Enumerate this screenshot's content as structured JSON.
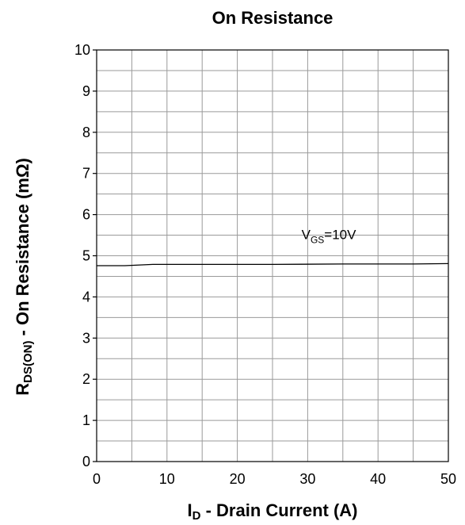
{
  "chart_data": {
    "type": "line",
    "title": "On Resistance",
    "xlabel": {
      "main": "I",
      "sub": "D",
      "rest": " - Drain Current (A)"
    },
    "ylabel": {
      "main": "R",
      "sub": "DS(ON)",
      "rest": " - On Resistance (mΩ)"
    },
    "xlim": [
      0,
      50
    ],
    "ylim": [
      0,
      10
    ],
    "x_major_ticks": [
      0,
      10,
      20,
      30,
      40,
      50
    ],
    "y_major_ticks": [
      0,
      1,
      2,
      3,
      4,
      5,
      6,
      7,
      8,
      9,
      10
    ],
    "x_grid_step": 5,
    "y_grid_step": 0.5,
    "grid": true,
    "series": [
      {
        "x": [
          0,
          4,
          8,
          15,
          25,
          35,
          40,
          45,
          50
        ],
        "y": [
          4.76,
          4.76,
          4.79,
          4.79,
          4.79,
          4.8,
          4.8,
          4.8,
          4.81
        ]
      }
    ],
    "annotations": [
      {
        "main": "V",
        "sub": "GS",
        "rest": "=10V",
        "x": 33,
        "y": 5.4
      }
    ]
  }
}
